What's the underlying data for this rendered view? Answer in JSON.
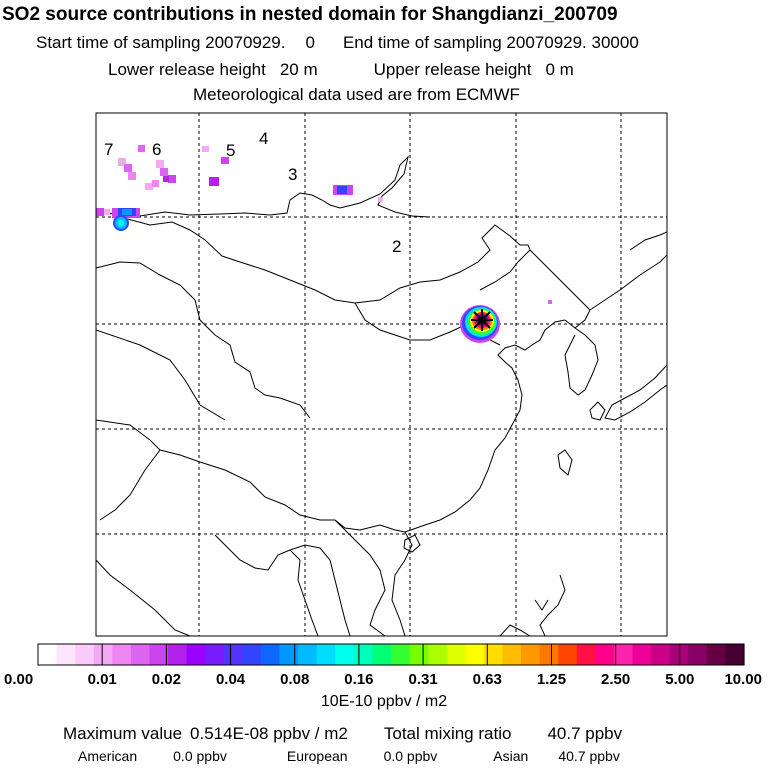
{
  "header": {
    "title": "SO2 source contributions in nested domain for Shangdianzi_200709",
    "start_label": "Start time of sampling 20070929.",
    "start_hour": "0",
    "end_label": "End time of sampling 20070929. 30000",
    "lower_label": "Lower release height",
    "lower_value": "20 m",
    "upper_label": "Upper release height",
    "upper_value": "0 m",
    "met_line": "Meteorological data used are from ECMWF"
  },
  "map": {
    "region_labels": [
      "7",
      "6",
      "5",
      "4",
      "3",
      "2"
    ]
  },
  "legend": {
    "tick_labels": [
      "0.00",
      "0.01",
      "0.02",
      "0.04",
      "0.08",
      "0.16",
      "0.31",
      "0.63",
      "1.25",
      "2.50",
      "5.00",
      "10.00"
    ],
    "unit": "10E-10 ppbv / m2",
    "colors": [
      "#ffffff",
      "#fde6fd",
      "#fbccfb",
      "#f5a8f5",
      "#ee85f3",
      "#dd66f0",
      "#cc44ee",
      "#b322ec",
      "#9900ff",
      "#7a1aff",
      "#5533ff",
      "#3344ff",
      "#1166ff",
      "#0099ff",
      "#00bbff",
      "#00ddff",
      "#00ffee",
      "#00ffbb",
      "#00ff77",
      "#33ff33",
      "#77ff00",
      "#aaff00",
      "#ddff00",
      "#ffff00",
      "#ffdd00",
      "#ffbb00",
      "#ff9900",
      "#ff7700",
      "#ff4400",
      "#ff1144",
      "#ff0088",
      "#ff22aa",
      "#ee0099",
      "#cc0088",
      "#aa0077",
      "#880066",
      "#660044",
      "#440033"
    ]
  },
  "footer": {
    "max_label": "Maximum value",
    "max_value": "0.514E-08 ppbv / m2",
    "total_label": "Total mixing ratio",
    "total_value": "40.7 ppbv",
    "american_label": "American",
    "american_value": "0.0 ppbv",
    "european_label": "European",
    "european_value": "0.0 ppbv",
    "asian_label": "Asian",
    "asian_value": "40.7 ppbv"
  }
}
